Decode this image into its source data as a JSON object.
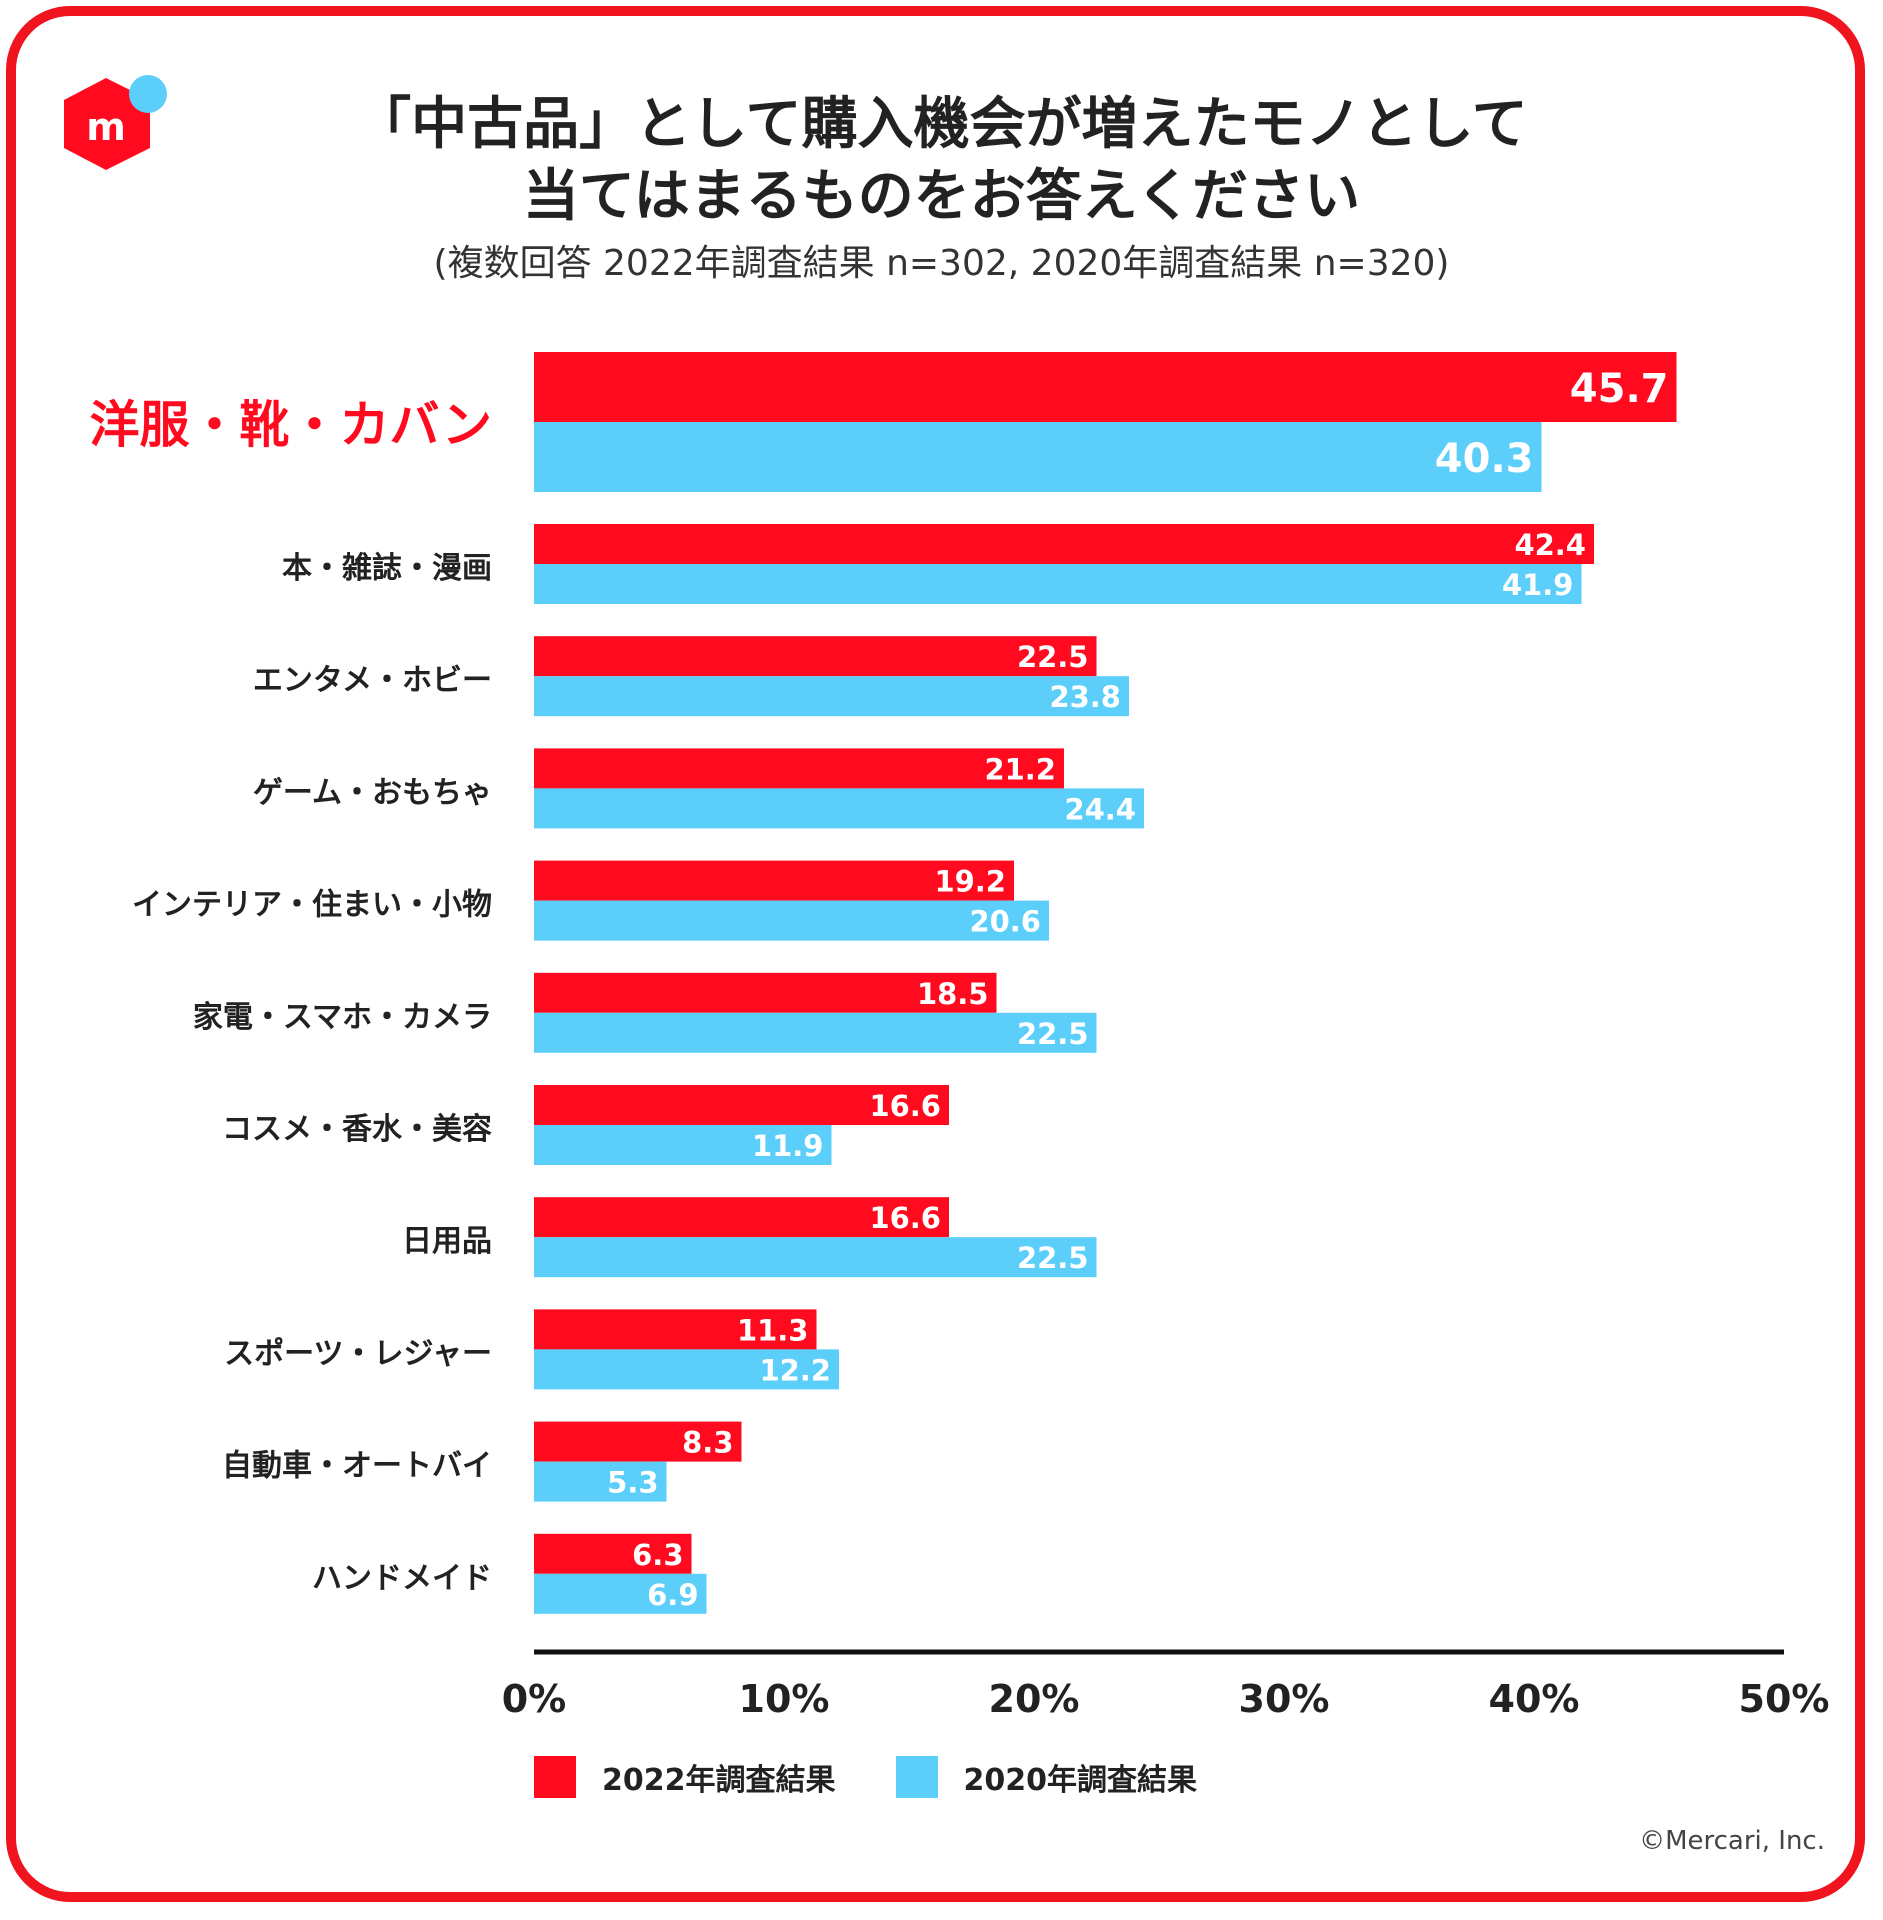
{
  "logo": {
    "letter": "m",
    "icon": "mercari-logo-icon"
  },
  "title_line1": "「中古品」として購入機会が増えたモノとして",
  "title_line2": "当てはまるものをお答えください",
  "subtitle": "(複数回答 2022年調査結果 n=302, 2020年調査結果 n=320)",
  "chart_data": {
    "type": "bar",
    "orientation": "horizontal",
    "categories": [
      "洋服・靴・カバン",
      "本・雑誌・漫画",
      "エンタメ・ホビー",
      "ゲーム・おもちゃ",
      "インテリア・住まい・小物",
      "家電・スマホ・カメラ",
      "コスメ・香水・美容",
      "日用品",
      "スポーツ・レジャー",
      "自動車・オートバイ",
      "ハンドメイド"
    ],
    "highlight_category_index": 0,
    "series": [
      {
        "name": "2022年調査結果",
        "color": "#ff0a1e",
        "values": [
          45.7,
          42.4,
          22.5,
          21.2,
          19.2,
          18.5,
          16.6,
          16.6,
          11.3,
          8.3,
          6.3
        ]
      },
      {
        "name": "2020年調査結果",
        "color": "#5ccefa",
        "values": [
          40.3,
          41.9,
          23.8,
          24.4,
          20.6,
          22.5,
          11.9,
          22.5,
          12.2,
          5.3,
          6.9
        ]
      }
    ],
    "xlim": [
      0,
      50
    ],
    "xticks": [
      "0%",
      "10%",
      "20%",
      "30%",
      "40%",
      "50%"
    ],
    "legend_position": "bottom-left"
  },
  "legend": {
    "item1": "2022年調査結果",
    "item2": "2020年調査結果"
  },
  "credit": "©Mercari, Inc."
}
